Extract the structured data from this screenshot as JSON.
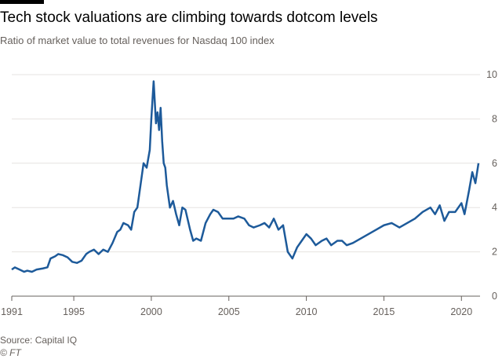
{
  "chart_data": {
    "type": "line",
    "title": "Tech stock valuations are climbing towards dotcom levels",
    "subtitle": "Ratio of market value to total revenues for Nasdaq 100 index",
    "source": "Source: Capital IQ",
    "credit": "© FT",
    "xlim": [
      1991,
      2021.2
    ],
    "xticks": [
      1991,
      1995,
      2000,
      2005,
      2010,
      2015,
      2020
    ],
    "ylim": [
      0,
      10
    ],
    "yticks": [
      0,
      2,
      4,
      6,
      8,
      10
    ],
    "grid": true,
    "series": [
      {
        "color": "#1d5a9a",
        "x": [
          1991.0,
          1991.2,
          1991.5,
          1991.8,
          1992.0,
          1992.3,
          1992.6,
          1993.0,
          1993.3,
          1993.5,
          1993.8,
          1994.0,
          1994.3,
          1994.6,
          1994.9,
          1995.2,
          1995.5,
          1995.8,
          1996.0,
          1996.3,
          1996.6,
          1996.9,
          1997.2,
          1997.5,
          1997.8,
          1998.0,
          1998.2,
          1998.5,
          1998.7,
          1998.9,
          1999.1,
          1999.3,
          1999.5,
          1999.7,
          1999.9,
          2000.0,
          2000.15,
          2000.3,
          2000.4,
          2000.5,
          2000.6,
          2000.7,
          2000.8,
          2000.9,
          2001.0,
          2001.2,
          2001.4,
          2001.6,
          2001.8,
          2002.0,
          2002.2,
          2002.5,
          2002.7,
          2002.9,
          2003.2,
          2003.5,
          2003.8,
          2004.0,
          2004.3,
          2004.6,
          2005.0,
          2005.3,
          2005.6,
          2006.0,
          2006.3,
          2006.6,
          2007.0,
          2007.3,
          2007.6,
          2007.9,
          2008.2,
          2008.5,
          2008.8,
          2009.1,
          2009.4,
          2009.7,
          2010.0,
          2010.3,
          2010.6,
          2011.0,
          2011.3,
          2011.6,
          2012.0,
          2012.3,
          2012.6,
          2013.0,
          2013.5,
          2014.0,
          2014.5,
          2015.0,
          2015.5,
          2016.0,
          2016.5,
          2017.0,
          2017.5,
          2018.0,
          2018.3,
          2018.6,
          2018.9,
          2019.2,
          2019.6,
          2020.0,
          2020.2,
          2020.5,
          2020.7,
          2020.9,
          2021.1
        ],
        "values": [
          1.2,
          1.3,
          1.2,
          1.1,
          1.15,
          1.1,
          1.2,
          1.25,
          1.3,
          1.7,
          1.8,
          1.9,
          1.85,
          1.75,
          1.55,
          1.5,
          1.6,
          1.9,
          2.0,
          2.1,
          1.9,
          2.1,
          2.0,
          2.4,
          2.9,
          3.0,
          3.3,
          3.2,
          3.0,
          3.8,
          4.0,
          5.0,
          6.0,
          5.8,
          6.6,
          8.0,
          9.7,
          7.8,
          8.3,
          7.5,
          8.5,
          7.0,
          6.0,
          5.8,
          5.0,
          4.0,
          4.3,
          3.7,
          3.2,
          4.0,
          3.9,
          3.0,
          2.5,
          2.6,
          2.5,
          3.3,
          3.7,
          3.9,
          3.8,
          3.5,
          3.5,
          3.5,
          3.6,
          3.5,
          3.2,
          3.1,
          3.2,
          3.3,
          3.1,
          3.5,
          3.0,
          3.2,
          2.0,
          1.7,
          2.2,
          2.5,
          2.8,
          2.6,
          2.3,
          2.5,
          2.6,
          2.3,
          2.5,
          2.5,
          2.3,
          2.4,
          2.6,
          2.8,
          3.0,
          3.2,
          3.3,
          3.1,
          3.3,
          3.5,
          3.8,
          4.0,
          3.7,
          4.1,
          3.4,
          3.8,
          3.8,
          4.2,
          3.7,
          4.8,
          5.6,
          5.1,
          6.0
        ]
      }
    ]
  }
}
